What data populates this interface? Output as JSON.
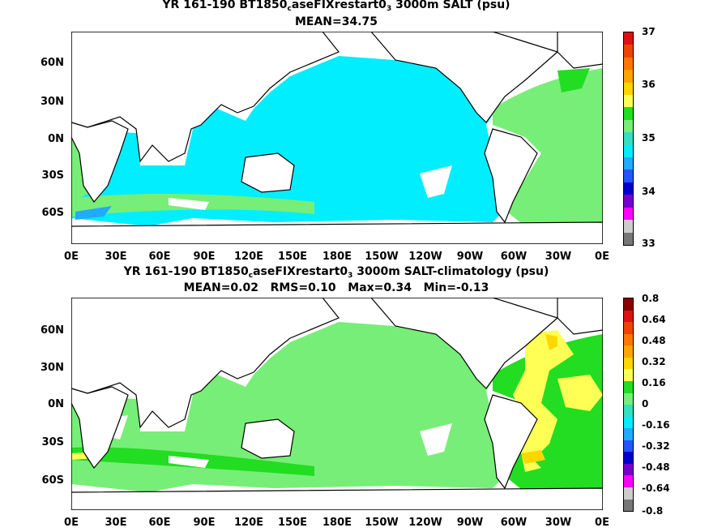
{
  "panel1": {
    "title_pre": "YR 161-190 BT1850",
    "title_sub1": "c",
    "title_mid": "aseFIXrestart0",
    "title_sub2": "3",
    "title_post": " 3000m SALT (psu)",
    "stats": "MEAN=34.75",
    "colorbar_labels": [
      "37",
      "36",
      "35",
      "34",
      "33"
    ],
    "colorbar_colors": [
      "#dd1111",
      "#ee4400",
      "#ff7700",
      "#ffa500",
      "#ffd700",
      "#ffff55",
      "#22dd22",
      "#77ee77",
      "#33e0c0",
      "#00eeff",
      "#22aaff",
      "#2255ff",
      "#0000cc",
      "#7700cc",
      "#ff00ff",
      "#cccccc",
      "#777777"
    ]
  },
  "panel2": {
    "title_pre": "YR 161-190 BT1850",
    "title_sub1": "c",
    "title_mid": "aseFIXrestart0",
    "title_sub2": "3",
    "title_post": " 3000m SALT-climatology (psu)",
    "stats": "MEAN=0.02   RMS=0.10   Max=0.34   Min=-0.13",
    "colorbar_labels": [
      "0.8",
      "0.64",
      "0.48",
      "0.32",
      "0.16",
      "0",
      "-0.16",
      "-0.32",
      "-0.48",
      "-0.64",
      "-0.8"
    ],
    "colorbar_colors": [
      "#880000",
      "#dd1111",
      "#ee4400",
      "#ff7700",
      "#ffa500",
      "#ffd700",
      "#ffff55",
      "#22dd22",
      "#77ee77",
      "#33e0c0",
      "#00eeff",
      "#22aaff",
      "#2255ff",
      "#0000cc",
      "#7700cc",
      "#ff00ff",
      "#cccccc",
      "#777777"
    ]
  },
  "lat_labels": [
    "60N",
    "30N",
    "0N",
    "30S",
    "60S"
  ],
  "lon_labels": [
    "0E",
    "30E",
    "60E",
    "90E",
    "120E",
    "150E",
    "180E",
    "150W",
    "120W",
    "90W",
    "60W",
    "30W",
    "0E"
  ],
  "colors": {
    "ocean_fresh": "#00eeff",
    "ocean_mid": "#77ee77",
    "ocean_salty": "#22dd22",
    "anomaly_pos": "#ffff55",
    "anomaly_pos2": "#ffd700"
  }
}
